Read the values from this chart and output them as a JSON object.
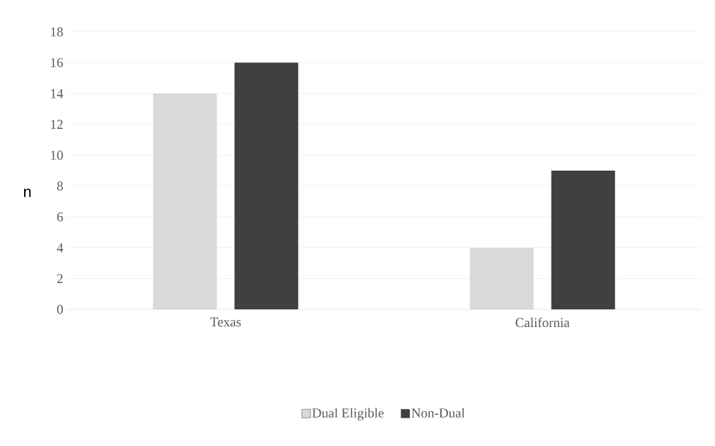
{
  "chart_data": {
    "type": "bar",
    "ylabel": "n",
    "categories": [
      "Texas",
      "California"
    ],
    "series": [
      {
        "name": "Dual Eligible",
        "color": "#d9d9d9",
        "values": [
          14,
          4
        ]
      },
      {
        "name": "Non-Dual",
        "color": "#404040",
        "values": [
          16,
          9
        ]
      }
    ],
    "ylim": [
      0,
      18
    ],
    "yticks": [
      0,
      2,
      4,
      6,
      8,
      10,
      12,
      14,
      16,
      18
    ],
    "grid": "y",
    "legend": "bottom"
  }
}
